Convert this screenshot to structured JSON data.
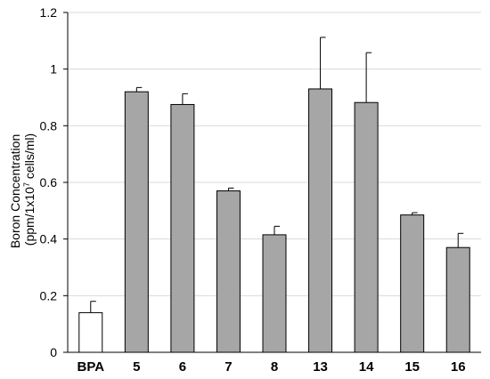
{
  "chart_data": {
    "type": "bar",
    "title": "",
    "xlabel": "",
    "ylabel_line1": "Boron Concentration",
    "ylabel_line2_prefix": "(ppm/1x10",
    "ylabel_line2_sup": "7",
    "ylabel_line2_suffix": " cells/ml)",
    "ylim": [
      0,
      1.2
    ],
    "yticks": [
      "0",
      "0.2",
      "0.4",
      "0.6",
      "0.8",
      "1",
      "1.2"
    ],
    "ytick_values": [
      0,
      0.2,
      0.4,
      0.6,
      0.8,
      1.0,
      1.2
    ],
    "grid": true,
    "categories": [
      "BPA",
      "5",
      "6",
      "7",
      "8",
      "13",
      "14",
      "15",
      "16"
    ],
    "values": [
      0.14,
      0.92,
      0.875,
      0.57,
      0.415,
      0.93,
      0.882,
      0.485,
      0.37
    ],
    "errors": [
      0.04,
      0.015,
      0.038,
      0.01,
      0.03,
      0.182,
      0.176,
      0.008,
      0.05
    ],
    "colors": {
      "control": "#ffffff",
      "treatment": "#a6a6a6",
      "stroke": "#000000",
      "grid": "#d9d9d9"
    }
  }
}
